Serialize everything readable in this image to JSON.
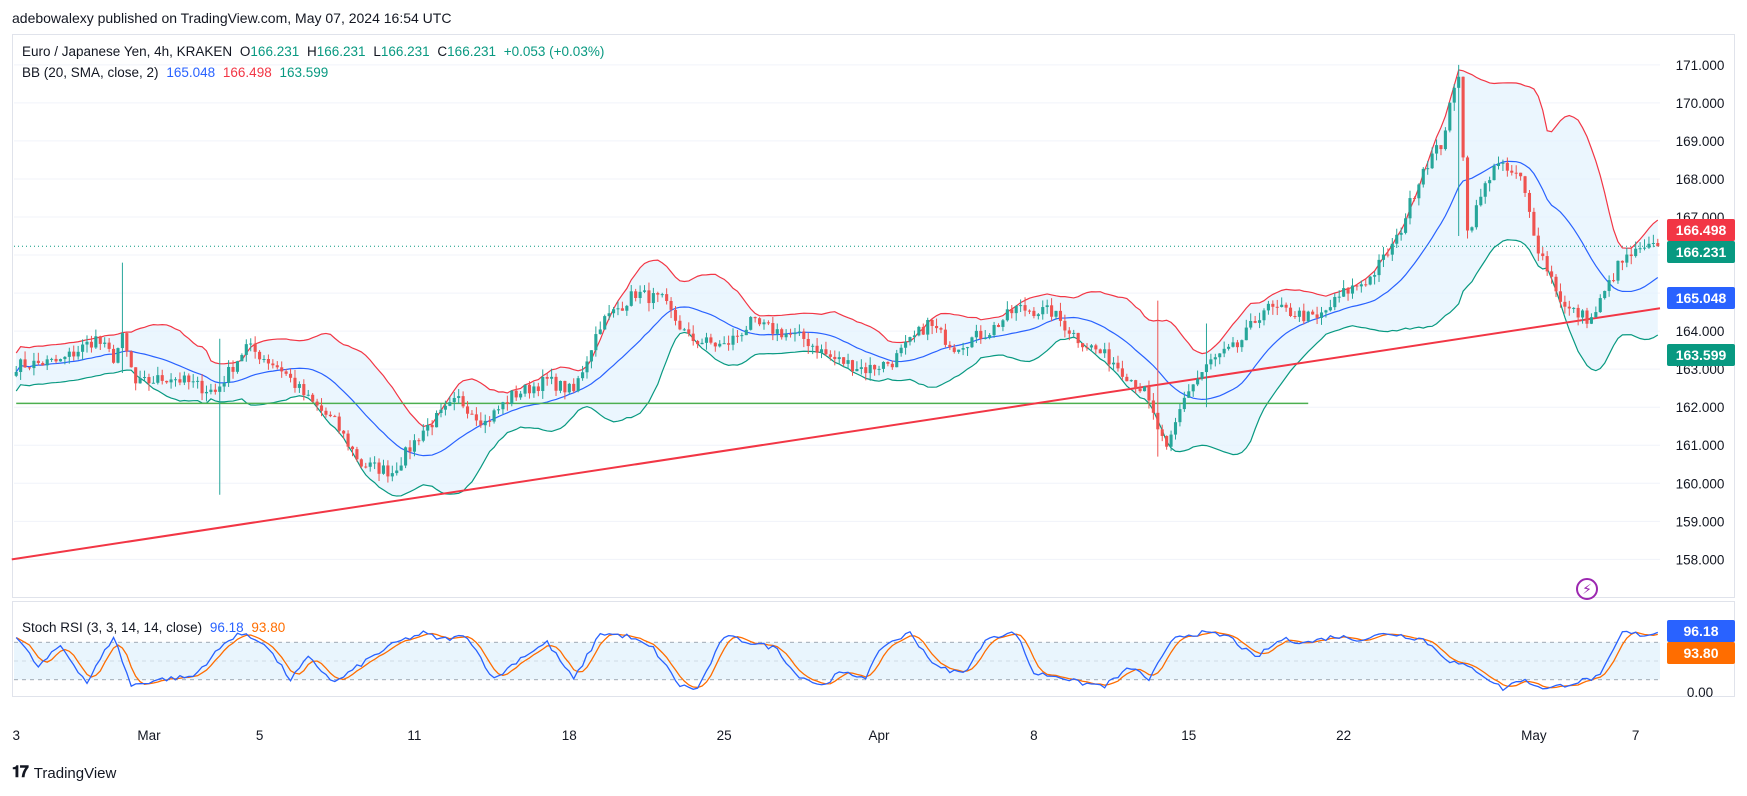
{
  "publisher_line": "adebowalexy published on TradingView.com, May 07, 2024 16:54 UTC",
  "legend": {
    "symbol": "Euro / Japanese Yen, 4h, KRAKEN",
    "o_label": "O",
    "o": "166.231",
    "h_label": "H",
    "h": "166.231",
    "l_label": "L",
    "l": "166.231",
    "c_label": "C",
    "c": "166.231",
    "change": "+0.053 (+0.03%)",
    "bb_name": "BB (20, SMA, close, 2)",
    "bb_basis": "165.048",
    "bb_upper": "166.498",
    "bb_lower": "163.599",
    "rsi_name": "Stoch RSI (3, 3, 14, 14, close)",
    "rsi_k": "96.18",
    "rsi_d": "93.80"
  },
  "badges": {
    "upper": "166.498",
    "last": "166.231",
    "basis": "165.048",
    "lower": "163.599",
    "rsi_k": "96.18",
    "rsi_d": "93.80"
  },
  "branding": "TradingView",
  "colors": {
    "up": "#26a69a",
    "down": "#ef5350",
    "basis": "#2962ff",
    "upper": "#f23645",
    "lower": "#089981",
    "fill": "#e3f2fd",
    "trendline": "#f23645",
    "support": "#4caf50",
    "rsi_k": "#2962ff",
    "rsi_d": "#ff6d00",
    "last_price": "#089981"
  },
  "chart_data": {
    "type": "candlestick",
    "instrument": "EUR/JPY",
    "timeframe": "4h",
    "y_axis": {
      "ticks": [
        "171.000",
        "170.000",
        "169.000",
        "168.000",
        "167.000",
        "166.000",
        "165.000",
        "164.000",
        "163.000",
        "162.000",
        "161.000",
        "160.000",
        "159.000",
        "158.000"
      ],
      "ylim": [
        157.3,
        171.6
      ]
    },
    "x_axis": {
      "ticks": [
        {
          "label": "3",
          "bar": 0
        },
        {
          "label": "Mar",
          "bar": 30
        },
        {
          "label": "5",
          "bar": 55
        },
        {
          "label": "11",
          "bar": 90
        },
        {
          "label": "18",
          "bar": 125
        },
        {
          "label": "25",
          "bar": 160
        },
        {
          "label": "Apr",
          "bar": 195
        },
        {
          "label": "8",
          "bar": 230
        },
        {
          "label": "15",
          "bar": 265
        },
        {
          "label": "22",
          "bar": 300
        },
        {
          "label": "May",
          "bar": 343
        },
        {
          "label": "7",
          "bar": 366
        }
      ],
      "bar_count": 372
    },
    "close_anchors": [
      [
        0,
        163.1
      ],
      [
        10,
        163.2
      ],
      [
        18,
        163.8
      ],
      [
        22,
        163.3
      ],
      [
        24,
        163.8
      ],
      [
        27,
        162.6
      ],
      [
        35,
        162.8
      ],
      [
        45,
        162.4
      ],
      [
        52,
        163.6
      ],
      [
        60,
        163.0
      ],
      [
        66,
        162.2
      ],
      [
        72,
        161.6
      ],
      [
        78,
        160.5
      ],
      [
        85,
        160.3
      ],
      [
        92,
        161.4
      ],
      [
        100,
        162.2
      ],
      [
        106,
        161.6
      ],
      [
        112,
        162.3
      ],
      [
        120,
        162.7
      ],
      [
        126,
        162.4
      ],
      [
        132,
        164.2
      ],
      [
        140,
        165.0
      ],
      [
        146,
        164.8
      ],
      [
        152,
        163.8
      ],
      [
        160,
        163.6
      ],
      [
        166,
        164.2
      ],
      [
        172,
        164.0
      ],
      [
        178,
        163.8
      ],
      [
        184,
        163.3
      ],
      [
        192,
        163.0
      ],
      [
        198,
        163.2
      ],
      [
        206,
        164.2
      ],
      [
        212,
        163.6
      ],
      [
        220,
        164.0
      ],
      [
        226,
        164.6
      ],
      [
        234,
        164.5
      ],
      [
        240,
        163.8
      ],
      [
        248,
        163.2
      ],
      [
        255,
        162.4
      ],
      [
        260,
        160.8
      ],
      [
        264,
        162.3
      ],
      [
        270,
        163.2
      ],
      [
        276,
        163.6
      ],
      [
        282,
        164.6
      ],
      [
        288,
        164.5
      ],
      [
        294,
        164.3
      ],
      [
        300,
        165.0
      ],
      [
        306,
        165.4
      ],
      [
        312,
        166.4
      ],
      [
        318,
        168.3
      ],
      [
        322,
        168.9
      ],
      [
        326,
        170.8
      ],
      [
        328,
        166.6
      ],
      [
        334,
        168.4
      ],
      [
        340,
        168.0
      ],
      [
        344,
        166.2
      ],
      [
        350,
        164.6
      ],
      [
        356,
        164.3
      ],
      [
        362,
        165.7
      ],
      [
        365,
        166.0
      ],
      [
        371,
        166.23
      ]
    ],
    "spikes": [
      {
        "bar": 24,
        "high": 165.8,
        "low": 162.9
      },
      {
        "bar": 46,
        "high": 163.8,
        "low": 159.7
      },
      {
        "bar": 258,
        "high": 164.8,
        "low": 160.7
      },
      {
        "bar": 269,
        "high": 164.2,
        "low": 162.0
      },
      {
        "bar": 326,
        "high": 171.0,
        "low": 166.5
      }
    ],
    "last_price": 166.231,
    "bollinger_bands": {
      "period": 20,
      "stddev": 2,
      "basis_last": 165.048,
      "upper_last": 166.498,
      "lower_last": 163.599
    },
    "trendline": {
      "start": {
        "bar": 0,
        "price": 158.0
      },
      "end": {
        "bar": 372,
        "price": 164.6
      },
      "extends_right": true
    },
    "support_line": {
      "price": 162.1,
      "start_bar": 0,
      "end_bar": 292
    },
    "stoch_rsi": {
      "k": 96.18,
      "d": 93.8,
      "bands": [
        20,
        50,
        80
      ],
      "ticks": [
        "0.00"
      ],
      "k_anchors": [
        [
          0,
          90
        ],
        [
          5,
          40
        ],
        [
          10,
          75
        ],
        [
          16,
          15
        ],
        [
          22,
          90
        ],
        [
          26,
          10
        ],
        [
          32,
          20
        ],
        [
          40,
          25
        ],
        [
          46,
          70
        ],
        [
          50,
          95
        ],
        [
          56,
          80
        ],
        [
          62,
          20
        ],
        [
          66,
          55
        ],
        [
          72,
          15
        ],
        [
          80,
          55
        ],
        [
          86,
          80
        ],
        [
          92,
          95
        ],
        [
          96,
          85
        ],
        [
          102,
          90
        ],
        [
          108,
          20
        ],
        [
          114,
          55
        ],
        [
          120,
          80
        ],
        [
          126,
          20
        ],
        [
          132,
          95
        ],
        [
          138,
          90
        ],
        [
          144,
          70
        ],
        [
          150,
          10
        ],
        [
          154,
          5
        ],
        [
          160,
          90
        ],
        [
          166,
          80
        ],
        [
          172,
          70
        ],
        [
          176,
          30
        ],
        [
          182,
          10
        ],
        [
          186,
          30
        ],
        [
          192,
          25
        ],
        [
          196,
          75
        ],
        [
          202,
          95
        ],
        [
          208,
          40
        ],
        [
          214,
          30
        ],
        [
          220,
          90
        ],
        [
          226,
          95
        ],
        [
          230,
          30
        ],
        [
          236,
          25
        ],
        [
          240,
          15
        ],
        [
          246,
          10
        ],
        [
          252,
          40
        ],
        [
          256,
          20
        ],
        [
          262,
          90
        ],
        [
          268,
          95
        ],
        [
          274,
          90
        ],
        [
          280,
          55
        ],
        [
          286,
          85
        ],
        [
          292,
          80
        ],
        [
          298,
          90
        ],
        [
          304,
          85
        ],
        [
          310,
          95
        ],
        [
          318,
          85
        ],
        [
          324,
          50
        ],
        [
          330,
          35
        ],
        [
          336,
          5
        ],
        [
          340,
          20
        ],
        [
          346,
          5
        ],
        [
          352,
          15
        ],
        [
          358,
          25
        ],
        [
          363,
          96
        ],
        [
          368,
          92
        ],
        [
          371,
          96
        ]
      ]
    }
  }
}
